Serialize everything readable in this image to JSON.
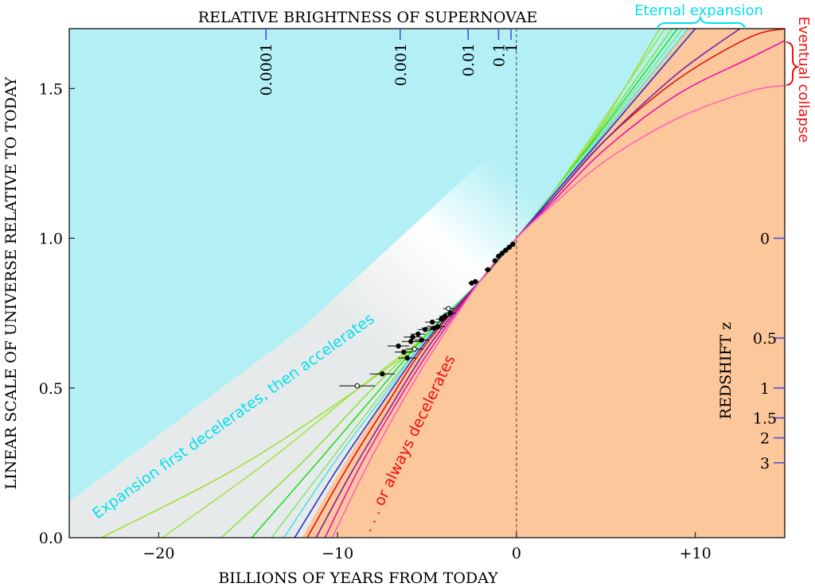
{
  "chart_data": {
    "type": "line",
    "title": "RELATIVE BRIGHTNESS OF SUPERNOVAE",
    "xlabel": "BILLIONS OF YEARS FROM TODAY",
    "ylabel": "LINEAR SCALE OF UNIVERSE RELATIVE TO TODAY",
    "right_axis_label": "REDSHIFT z",
    "xlim": [
      -25,
      15
    ],
    "ylim": [
      0,
      1.7
    ],
    "x_ticks": [
      {
        "value": -20,
        "label": "−20"
      },
      {
        "value": -10,
        "label": "−10"
      },
      {
        "value": 0,
        "label": "0"
      },
      {
        "value": 10,
        "label": "+10"
      }
    ],
    "y_ticks": [
      {
        "value": 0,
        "label": "0.0"
      },
      {
        "value": 0.5,
        "label": "0.5"
      },
      {
        "value": 1.0,
        "label": "1.0"
      },
      {
        "value": 1.5,
        "label": "1.5"
      }
    ],
    "redshift_ticks": [
      {
        "label": "0",
        "scale": 1.0
      },
      {
        "label": "0.5",
        "scale": 0.6667
      },
      {
        "label": "1",
        "scale": 0.5
      },
      {
        "label": "1.5",
        "scale": 0.4
      },
      {
        "label": "2",
        "scale": 0.3333
      },
      {
        "label": "3",
        "scale": 0.25
      }
    ],
    "brightness_ticks": [
      {
        "label": "0.0001",
        "x": -14
      },
      {
        "label": "0.001",
        "x": -6.5
      },
      {
        "label": "0.01",
        "x": -2.7
      },
      {
        "label": "0.1",
        "x": -1.0
      },
      {
        "label": "1",
        "x": -0.3
      }
    ],
    "annotations": {
      "eternal": "Eternal expansion",
      "collapse": "Eventual collapse",
      "accelerates": "Expansion first decelerates, then accelerates",
      "decelerates": ". . . or always decelerates"
    },
    "today_line_x": 0,
    "colors": {
      "sky": "#b3f0f5",
      "peach": "#fbc79b",
      "cyan_text": "#00e8f0",
      "red_text": "#ee1111",
      "tick_blue": "#4444dd"
    },
    "series": [
      {
        "color": "#9be03a",
        "x": [
          -23.2,
          -16,
          -10,
          -5,
          -2,
          0,
          2,
          5,
          8
        ],
        "y": [
          0.0,
          0.22,
          0.45,
          0.67,
          0.86,
          1.0,
          1.15,
          1.4,
          1.7
        ]
      },
      {
        "color": "#a2e34a",
        "x": [
          -19.8,
          -14,
          -9,
          -5,
          -2,
          0,
          2,
          5,
          8.3
        ],
        "y": [
          0.0,
          0.25,
          0.49,
          0.68,
          0.86,
          1.0,
          1.15,
          1.41,
          1.7
        ]
      },
      {
        "color": "#8be23c",
        "x": [
          -16.5,
          -12,
          -8.5,
          -5,
          -2,
          0,
          2,
          5,
          8.7
        ],
        "y": [
          0.0,
          0.25,
          0.47,
          0.68,
          0.86,
          1.0,
          1.15,
          1.39,
          1.7
        ]
      },
      {
        "color": "#22dd22",
        "x": [
          -14.8,
          -11,
          -8,
          -5,
          -2,
          0,
          2,
          5,
          9.0
        ],
        "y": [
          0.0,
          0.26,
          0.47,
          0.68,
          0.86,
          1.0,
          1.15,
          1.38,
          1.7
        ]
      },
      {
        "color": "#88e477",
        "x": [
          -13.7,
          -10.5,
          -7.8,
          -5,
          -2,
          0,
          2,
          5,
          9.3
        ],
        "y": [
          0.0,
          0.25,
          0.46,
          0.67,
          0.86,
          1.0,
          1.15,
          1.37,
          1.7
        ]
      },
      {
        "color": "#55dddd",
        "x": [
          -13.0,
          -10.2,
          -7.6,
          -5,
          -2,
          0,
          2,
          5,
          9.6
        ],
        "y": [
          0.0,
          0.25,
          0.46,
          0.67,
          0.86,
          1.0,
          1.14,
          1.36,
          1.7
        ]
      },
      {
        "color": "#2233cc",
        "x": [
          -12.4,
          -9.9,
          -7.5,
          -5,
          -2,
          0,
          2,
          5,
          10.0
        ],
        "y": [
          0.0,
          0.24,
          0.45,
          0.66,
          0.86,
          1.0,
          1.14,
          1.35,
          1.7
        ]
      },
      {
        "color": "#dd1111",
        "x": [
          -11.7,
          -9.5,
          -7.3,
          -5,
          -2,
          0,
          2,
          5,
          9,
          13,
          15
        ],
        "y": [
          0.0,
          0.23,
          0.44,
          0.65,
          0.86,
          1.0,
          1.13,
          1.33,
          1.53,
          1.67,
          1.7
        ]
      },
      {
        "color": "#7722aa",
        "x": [
          -11.2,
          -9.2,
          -7.1,
          -4.9,
          -2,
          0,
          2,
          5,
          9,
          12.5
        ],
        "y": [
          0.0,
          0.22,
          0.43,
          0.64,
          0.86,
          1.0,
          1.13,
          1.33,
          1.55,
          1.7
        ]
      },
      {
        "color": "#ee11aa",
        "x": [
          -10.7,
          -8.9,
          -7.0,
          -4.8,
          -2,
          0,
          2,
          5,
          9,
          13,
          15
        ],
        "y": [
          0.0,
          0.22,
          0.42,
          0.63,
          0.86,
          1.0,
          1.12,
          1.3,
          1.48,
          1.6,
          1.66
        ]
      },
      {
        "color": "#ff66bb",
        "x": [
          -10.3,
          -8.6,
          -6.8,
          -4.7,
          -2,
          0,
          2,
          5,
          9,
          13,
          15
        ],
        "y": [
          0.0,
          0.21,
          0.41,
          0.62,
          0.86,
          1.0,
          1.11,
          1.26,
          1.4,
          1.49,
          1.51
        ]
      }
    ],
    "data_points": [
      {
        "x": -8.9,
        "y": 0.507,
        "err": 1.0,
        "open": true
      },
      {
        "x": -7.5,
        "y": 0.547,
        "err": 0.7,
        "open": false
      },
      {
        "x": -6.6,
        "y": 0.64,
        "err": 0.6,
        "open": false
      },
      {
        "x": -6.3,
        "y": 0.62,
        "err": 0.5,
        "open": false
      },
      {
        "x": -6.1,
        "y": 0.6,
        "err": 0.5,
        "open": false
      },
      {
        "x": -5.9,
        "y": 0.655,
        "err": 0.5,
        "open": false
      },
      {
        "x": -5.8,
        "y": 0.67,
        "err": 0.5,
        "open": false
      },
      {
        "x": -5.7,
        "y": 0.63,
        "err": 0.5,
        "open": true
      },
      {
        "x": -5.5,
        "y": 0.68,
        "err": 0.4,
        "open": false
      },
      {
        "x": -5.3,
        "y": 0.66,
        "err": 0.4,
        "open": false
      },
      {
        "x": -5.1,
        "y": 0.695,
        "err": 0.4,
        "open": false
      },
      {
        "x": -4.9,
        "y": 0.7,
        "err": 0.4,
        "open": true
      },
      {
        "x": -4.7,
        "y": 0.72,
        "err": 0.4,
        "open": false
      },
      {
        "x": -4.6,
        "y": 0.7,
        "err": 0.4,
        "open": false
      },
      {
        "x": -4.4,
        "y": 0.705,
        "err": 0.4,
        "open": false
      },
      {
        "x": -4.2,
        "y": 0.73,
        "err": 0.3,
        "open": false
      },
      {
        "x": -4.0,
        "y": 0.74,
        "err": 0.3,
        "open": false
      },
      {
        "x": -3.8,
        "y": 0.765,
        "err": 0.3,
        "open": true
      },
      {
        "x": -3.7,
        "y": 0.75,
        "err": 0.3,
        "open": false
      },
      {
        "x": -2.5,
        "y": 0.85,
        "err": 0.2,
        "open": false
      },
      {
        "x": -2.3,
        "y": 0.855,
        "err": 0.2,
        "open": false
      },
      {
        "x": -1.6,
        "y": 0.895,
        "err": 0.2,
        "open": false
      },
      {
        "x": -1.2,
        "y": 0.925,
        "err": 0.15,
        "open": false
      },
      {
        "x": -1.0,
        "y": 0.94,
        "err": 0.15,
        "open": false
      },
      {
        "x": -0.8,
        "y": 0.95,
        "err": 0.15,
        "open": false
      },
      {
        "x": -0.6,
        "y": 0.96,
        "err": 0.15,
        "open": false
      },
      {
        "x": -0.4,
        "y": 0.97,
        "err": 0.15,
        "open": false
      },
      {
        "x": -0.2,
        "y": 0.98,
        "err": 0.15,
        "open": false
      }
    ]
  }
}
